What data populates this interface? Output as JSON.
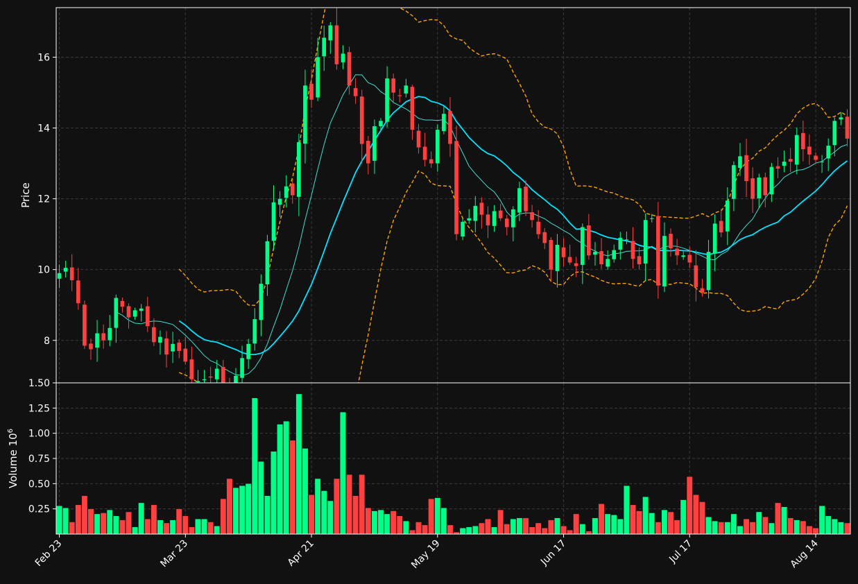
{
  "colors": {
    "background": "#111111",
    "up": "#00ff88",
    "down": "#ff4040",
    "grid": "#3a3a3a",
    "axis": "#ffffff",
    "ma_fast": "#40e0d0",
    "ma_slow": "#00e5ff",
    "bands": "#ffa500"
  },
  "chart_data": [
    {
      "type": "candlestick",
      "ylabel": "Price",
      "ylim": [
        6.8,
        17.4
      ],
      "yticks": [
        8,
        10,
        12,
        14,
        16
      ],
      "grid": true,
      "session_count": 126,
      "x_ticks": [
        {
          "label": "Feb 23",
          "index": 0
        },
        {
          "label": "Mar 23",
          "index": 20
        },
        {
          "label": "Apr 21",
          "index": 40
        },
        {
          "label": "May 19",
          "index": 60
        },
        {
          "label": "Jun 17",
          "index": 80
        },
        {
          "label": "Jul 17",
          "index": 100
        },
        {
          "label": "Aug 14",
          "index": 120
        }
      ],
      "close": [
        9.9,
        10.05,
        9.7,
        9.05,
        7.85,
        7.75,
        8.2,
        8.0,
        8.35,
        9.2,
        8.95,
        8.65,
        8.85,
        8.9,
        8.4,
        7.95,
        8.1,
        7.6,
        7.9,
        7.7,
        7.4,
        6.9,
        6.85,
        6.9,
        6.95,
        7.2,
        6.8,
        6.6,
        7.0,
        7.5,
        7.9,
        8.6,
        9.6,
        10.8,
        11.9,
        12.0,
        12.35,
        12.1,
        13.6,
        15.2,
        14.8,
        16.0,
        16.55,
        16.9,
        15.8,
        16.1,
        15.2,
        14.9,
        13.55,
        13.0,
        14.05,
        14.2,
        15.4,
        15.0,
        14.9,
        15.2,
        13.95,
        13.45,
        13.1,
        13.0,
        13.95,
        14.4,
        13.55,
        11.0,
        11.35,
        11.45,
        11.8,
        11.55,
        11.25,
        11.65,
        11.45,
        11.2,
        11.7,
        12.3,
        11.65,
        11.4,
        11.0,
        10.75,
        10.0,
        10.7,
        10.35,
        10.2,
        10.1,
        11.2,
        10.4,
        10.5,
        10.15,
        10.3,
        10.55,
        10.9,
        10.85,
        10.3,
        10.15,
        11.4,
        11.45,
        9.55,
        10.95,
        10.6,
        10.4,
        10.4,
        10.2,
        9.5,
        9.35,
        10.5,
        11.3,
        11.05,
        11.95,
        12.95,
        13.2,
        12.5,
        12.0,
        12.6,
        12.1,
        12.9,
        12.85,
        13.05,
        13.05,
        13.8,
        13.4,
        13.25,
        13.1,
        13.05,
        13.5,
        14.2,
        14.3,
        13.7
      ]
    },
    {
      "type": "bar",
      "ylabel": "Volume",
      "scale_label": "10",
      "scale_exponent": "6",
      "ylim": [
        0.0,
        1.5
      ],
      "yticks": [
        "1.50",
        "1.25",
        "1.00",
        "0.75",
        "0.50",
        "0.25"
      ],
      "grid": true,
      "values": [
        0.28,
        0.26,
        0.12,
        0.29,
        0.38,
        0.25,
        0.2,
        0.21,
        0.24,
        0.18,
        0.14,
        0.22,
        0.07,
        0.31,
        0.15,
        0.29,
        0.14,
        0.11,
        0.14,
        0.25,
        0.18,
        0.07,
        0.15,
        0.15,
        0.12,
        0.08,
        0.35,
        0.55,
        0.46,
        0.48,
        0.5,
        1.35,
        0.72,
        0.38,
        0.82,
        1.09,
        1.12,
        0.93,
        1.39,
        0.85,
        0.39,
        0.55,
        0.43,
        0.33,
        0.55,
        1.21,
        0.59,
        0.38,
        0.59,
        0.26,
        0.23,
        0.24,
        0.2,
        0.23,
        0.18,
        0.13,
        0.04,
        0.12,
        0.09,
        0.35,
        0.36,
        0.26,
        0.09,
        0.02,
        0.06,
        0.07,
        0.08,
        0.11,
        0.15,
        0.07,
        0.24,
        0.1,
        0.15,
        0.16,
        0.16,
        0.07,
        0.11,
        0.06,
        0.14,
        0.16,
        0.08,
        0.04,
        0.2,
        0.1,
        0.03,
        0.16,
        0.3,
        0.2,
        0.19,
        0.15,
        0.48,
        0.29,
        0.23,
        0.37,
        0.21,
        0.12,
        0.24,
        0.22,
        0.14,
        0.34,
        0.57,
        0.39,
        0.32,
        0.17,
        0.13,
        0.12,
        0.12,
        0.2,
        0.08,
        0.15,
        0.12,
        0.22,
        0.17,
        0.11,
        0.31,
        0.27,
        0.16,
        0.14,
        0.13,
        0.08,
        0.06,
        0.28,
        0.18,
        0.15,
        0.12,
        0.11
      ]
    }
  ]
}
